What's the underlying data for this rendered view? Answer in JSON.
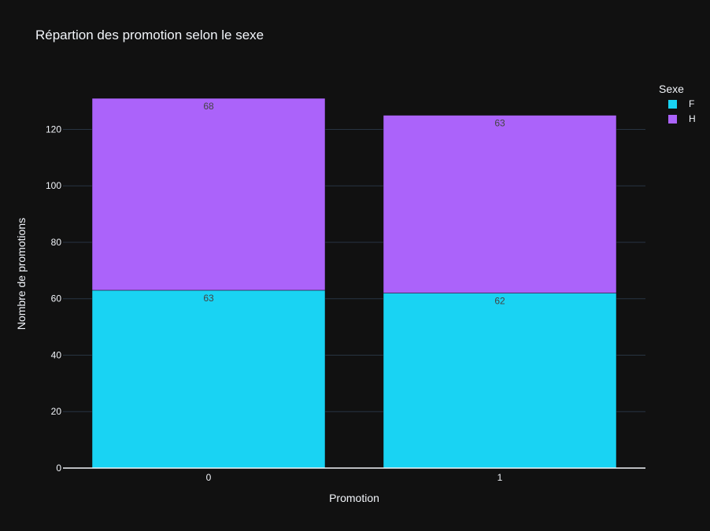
{
  "chart_data": {
    "type": "bar",
    "barmode": "stack",
    "title": "Répartion des promotion selon le sexe",
    "xlabel": "Promotion",
    "ylabel": "Nombre de promotions",
    "categories": [
      "0",
      "1"
    ],
    "series": [
      {
        "name": "F",
        "values": [
          63,
          62
        ],
        "color": "#19d3f3"
      },
      {
        "name": "H",
        "values": [
          68,
          63
        ],
        "color": "#ab63fa"
      }
    ],
    "ylim": [
      0,
      131
    ],
    "yticks": [
      0,
      20,
      40,
      60,
      80,
      100,
      120
    ],
    "grid": true,
    "legend": {
      "title": "Sexe",
      "position": "top-right"
    },
    "colors": {
      "background": "#111111",
      "grid": "#283442",
      "text": "#f2f5fa",
      "bar_label": "#444444"
    }
  }
}
